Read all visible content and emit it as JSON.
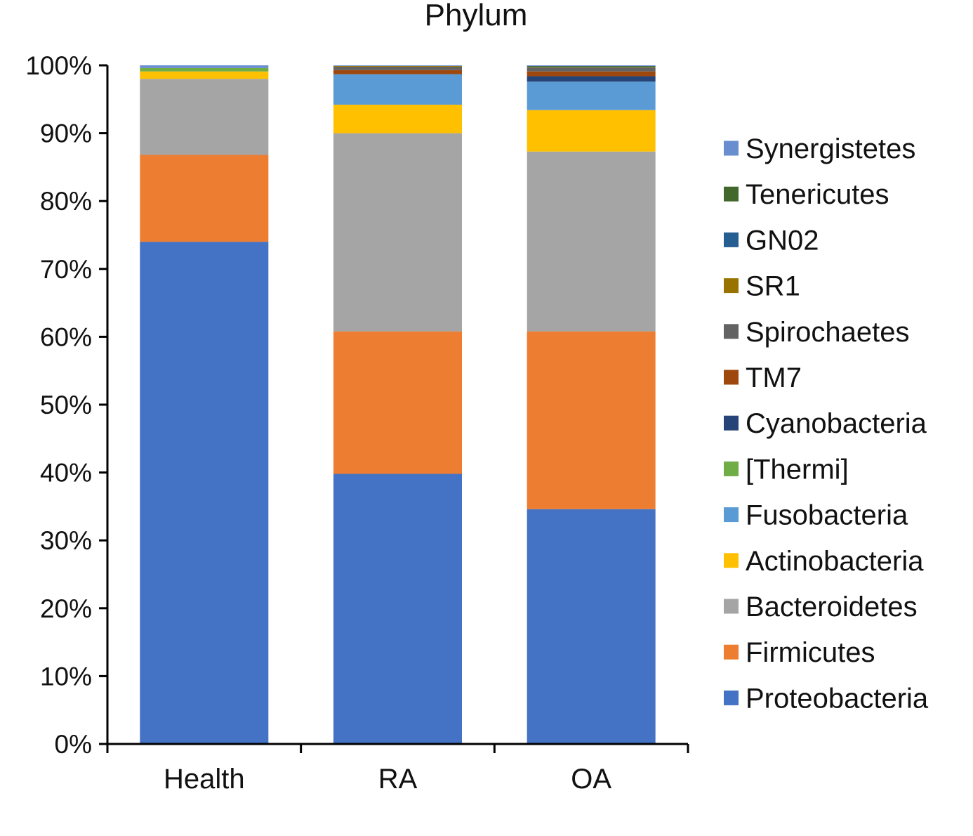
{
  "chart_data": {
    "type": "bar",
    "stacked": true,
    "title": "Phylum",
    "xlabel": "",
    "ylabel": "",
    "ylim": [
      0,
      100
    ],
    "y_tick_labels": [
      "0%",
      "10%",
      "20%",
      "30%",
      "40%",
      "50%",
      "60%",
      "70%",
      "80%",
      "90%",
      "100%"
    ],
    "grid": false,
    "legend_position": "right",
    "categories": [
      "Health",
      "RA",
      "OA"
    ],
    "series": [
      {
        "name": "Proteobacteria",
        "color": "#4472C4",
        "values": [
          74.0,
          39.8,
          34.6
        ]
      },
      {
        "name": "Firmicutes",
        "color": "#ED7D31",
        "values": [
          12.8,
          21.0,
          26.2
        ]
      },
      {
        "name": "Bacteroidetes",
        "color": "#A5A5A5",
        "values": [
          11.2,
          29.2,
          26.5
        ]
      },
      {
        "name": "Actinobacteria",
        "color": "#FFC000",
        "values": [
          1.1,
          4.2,
          6.1
        ]
      },
      {
        "name": "Fusobacteria",
        "color": "#5B9BD5",
        "values": [
          0.0,
          4.5,
          4.2
        ]
      },
      {
        "name": "[Thermi]",
        "color": "#70AD47",
        "values": [
          0.5,
          0.0,
          0.0
        ]
      },
      {
        "name": "Cyanobacteria",
        "color": "#264478",
        "values": [
          0.0,
          0.0,
          0.8
        ]
      },
      {
        "name": "TM7",
        "color": "#9E480E",
        "values": [
          0.0,
          0.6,
          0.7
        ]
      },
      {
        "name": "Spirochaetes",
        "color": "#636363",
        "values": [
          0.0,
          0.5,
          0.5
        ]
      },
      {
        "name": "SR1",
        "color": "#997300",
        "values": [
          0.0,
          0.1,
          0.1
        ]
      },
      {
        "name": "GN02",
        "color": "#255E91",
        "values": [
          0.0,
          0.0,
          0.1
        ]
      },
      {
        "name": "Tenericutes",
        "color": "#43682B",
        "values": [
          0.0,
          0.0,
          0.1
        ]
      },
      {
        "name": "Synergistetes",
        "color": "#698ED0",
        "values": [
          0.4,
          0.1,
          0.1
        ]
      }
    ]
  }
}
